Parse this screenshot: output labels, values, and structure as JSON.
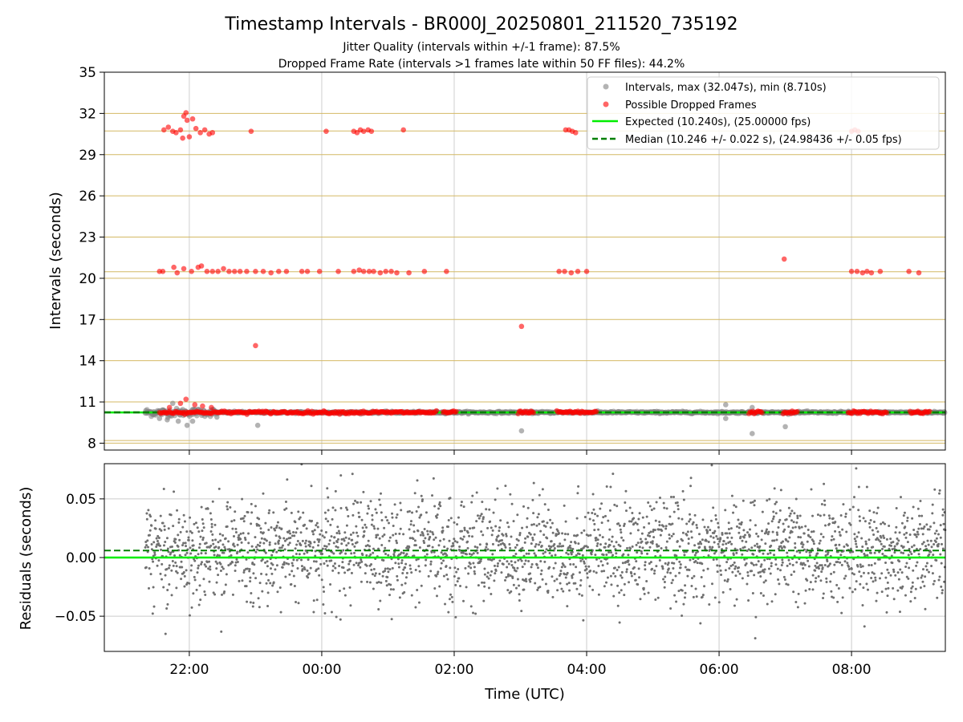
{
  "chart_data": [
    {
      "type": "scatter",
      "title": "Timestamp Intervals - BR000J_20250801_211520_735192",
      "subtitle_1": "Jitter Quality (intervals within +/-1 frame): 87.5%",
      "subtitle_2": "Dropped Frame Rate (intervals >1 frames late within 50 FF files): 44.2%",
      "ylabel": "Intervals (seconds)",
      "xlabel": "",
      "ylim": [
        7.5,
        35
      ],
      "xlim": [
        "2025-08-01 20:43",
        "2025-08-02 09:25"
      ],
      "yticks": [
        "8",
        "11",
        "14",
        "17",
        "20",
        "23",
        "26",
        "29",
        "32",
        "35"
      ],
      "frame_lines": [
        8.19,
        10.24,
        20.48,
        30.72
      ],
      "expected": 10.24,
      "median": 10.246,
      "grid": true,
      "legend_position": "top-right",
      "legend": {
        "intervals": "Intervals, max (32.047s), min (8.710s)",
        "dropped": "Possible Dropped Frames",
        "expected": "Expected (10.240s), (25.00000 fps)",
        "median": "Median (10.246 +/- 0.022 s), (24.98436 +/- 0.05 fps)"
      },
      "colors": {
        "intervals": "#808080",
        "dropped": "#ff0000",
        "expected": "#00ee00",
        "median": "#008000",
        "gridline": "#d4b964"
      },
      "series": [
        {
          "name": "Possible Dropped Frames",
          "points": [
            [
              "2025-08-01 21:37",
              30.8
            ],
            [
              "2025-08-01 21:41",
              31.0
            ],
            [
              "2025-08-01 21:45",
              30.7
            ],
            [
              "2025-08-01 21:48",
              30.6
            ],
            [
              "2025-08-01 21:52",
              30.8
            ],
            [
              "2025-08-01 21:55",
              31.8
            ],
            [
              "2025-08-01 21:57",
              32.05
            ],
            [
              "2025-08-01 21:58",
              31.5
            ],
            [
              "2025-08-01 22:00",
              30.3
            ],
            [
              "2025-08-01 22:03",
              31.6
            ],
            [
              "2025-08-01 22:06",
              30.9
            ],
            [
              "2025-08-01 22:10",
              30.6
            ],
            [
              "2025-08-01 22:14",
              30.8
            ],
            [
              "2025-08-01 22:18",
              30.5
            ],
            [
              "2025-08-01 22:21",
              30.6
            ],
            [
              "2025-08-01 21:54",
              30.2
            ],
            [
              "2025-08-01 22:56",
              30.7
            ],
            [
              "2025-08-02 00:04",
              30.7
            ],
            [
              "2025-08-02 00:29",
              30.7
            ],
            [
              "2025-08-02 00:32",
              30.6
            ],
            [
              "2025-08-02 00:35",
              30.8
            ],
            [
              "2025-08-02 00:38",
              30.7
            ],
            [
              "2025-08-02 00:42",
              30.8
            ],
            [
              "2025-08-02 00:45",
              30.7
            ],
            [
              "2025-08-02 01:14",
              30.8
            ],
            [
              "2025-08-02 03:41",
              30.8
            ],
            [
              "2025-08-02 03:44",
              30.8
            ],
            [
              "2025-08-02 03:47",
              30.7
            ],
            [
              "2025-08-02 03:50",
              30.6
            ],
            [
              "2025-08-02 08:00",
              30.7
            ],
            [
              "2025-08-02 08:03",
              30.8
            ],
            [
              "2025-08-02 08:06",
              30.7
            ],
            [
              "2025-08-01 21:33",
              20.5
            ],
            [
              "2025-08-01 21:36",
              20.5
            ],
            [
              "2025-08-01 21:46",
              20.8
            ],
            [
              "2025-08-01 21:49",
              20.4
            ],
            [
              "2025-08-01 21:55",
              20.7
            ],
            [
              "2025-08-01 22:02",
              20.5
            ],
            [
              "2025-08-01 22:08",
              20.8
            ],
            [
              "2025-08-01 22:11",
              20.9
            ],
            [
              "2025-08-01 22:16",
              20.5
            ],
            [
              "2025-08-01 22:21",
              20.5
            ],
            [
              "2025-08-01 22:26",
              20.5
            ],
            [
              "2025-08-01 22:31",
              20.7
            ],
            [
              "2025-08-01 22:36",
              20.5
            ],
            [
              "2025-08-01 22:41",
              20.5
            ],
            [
              "2025-08-01 22:46",
              20.5
            ],
            [
              "2025-08-01 22:52",
              20.5
            ],
            [
              "2025-08-01 23:00",
              20.5
            ],
            [
              "2025-08-01 23:07",
              20.5
            ],
            [
              "2025-08-01 23:14",
              20.4
            ],
            [
              "2025-08-01 23:21",
              20.5
            ],
            [
              "2025-08-01 23:28",
              20.5
            ],
            [
              "2025-08-01 23:42",
              20.5
            ],
            [
              "2025-08-01 23:47",
              20.5
            ],
            [
              "2025-08-01 23:58",
              20.5
            ],
            [
              "2025-08-02 00:15",
              20.5
            ],
            [
              "2025-08-02 00:29",
              20.5
            ],
            [
              "2025-08-02 00:34",
              20.6
            ],
            [
              "2025-08-02 00:38",
              20.5
            ],
            [
              "2025-08-02 00:43",
              20.5
            ],
            [
              "2025-08-02 00:47",
              20.5
            ],
            [
              "2025-08-02 00:53",
              20.4
            ],
            [
              "2025-08-02 00:58",
              20.5
            ],
            [
              "2025-08-02 01:03",
              20.5
            ],
            [
              "2025-08-02 01:08",
              20.4
            ],
            [
              "2025-08-02 01:19",
              20.4
            ],
            [
              "2025-08-02 01:33",
              20.5
            ],
            [
              "2025-08-02 01:53",
              20.5
            ],
            [
              "2025-08-02 03:35",
              20.5
            ],
            [
              "2025-08-02 03:40",
              20.5
            ],
            [
              "2025-08-02 03:46",
              20.4
            ],
            [
              "2025-08-02 03:52",
              20.5
            ],
            [
              "2025-08-02 04:00",
              20.5
            ],
            [
              "2025-08-02 06:59",
              21.4
            ],
            [
              "2025-08-02 08:00",
              20.5
            ],
            [
              "2025-08-02 08:05",
              20.5
            ],
            [
              "2025-08-02 08:10",
              20.4
            ],
            [
              "2025-08-02 08:14",
              20.5
            ],
            [
              "2025-08-02 08:18",
              20.4
            ],
            [
              "2025-08-02 08:26",
              20.5
            ],
            [
              "2025-08-02 08:52",
              20.5
            ],
            [
              "2025-08-02 09:01",
              20.4
            ],
            [
              "2025-08-01 23:00",
              15.1
            ],
            [
              "2025-08-02 03:01",
              16.5
            ],
            [
              "2025-08-01 21:57",
              11.2
            ],
            [
              "2025-08-01 21:52",
              10.9
            ],
            [
              "2025-08-01 22:05",
              10.8
            ],
            [
              "2025-08-01 22:12",
              10.7
            ],
            [
              "2025-08-01 21:42",
              10.6
            ],
            [
              "2025-08-01 22:20",
              10.6
            ]
          ],
          "bands_at_expected": [
            [
              "2025-08-01 21:33",
              "2025-08-02 01:45"
            ],
            [
              "2025-08-02 01:50",
              "2025-08-02 02:03"
            ],
            [
              "2025-08-02 02:58",
              "2025-08-02 03:13"
            ],
            [
              "2025-08-02 03:33",
              "2025-08-02 04:10"
            ],
            [
              "2025-08-02 06:27",
              "2025-08-02 06:40"
            ],
            [
              "2025-08-02 06:58",
              "2025-08-02 07:12"
            ],
            [
              "2025-08-02 07:57",
              "2025-08-02 08:33"
            ],
            [
              "2025-08-02 08:53",
              "2025-08-02 09:12"
            ]
          ]
        },
        {
          "name": "Intervals, max (32.047s), min (8.710s)",
          "range": [
            "2025-08-01 21:20",
            "2025-08-02 09:25"
          ],
          "typical": 10.24,
          "outliers": [
            [
              "2025-08-01 21:33",
              9.8
            ],
            [
              "2025-08-01 21:40",
              9.7
            ],
            [
              "2025-08-01 21:50",
              9.6
            ],
            [
              "2025-08-01 21:58",
              9.3
            ],
            [
              "2025-08-01 22:03",
              9.6
            ],
            [
              "2025-08-01 23:02",
              9.3
            ],
            [
              "2025-08-02 03:01",
              8.9
            ],
            [
              "2025-08-02 06:06",
              10.8
            ],
            [
              "2025-08-02 06:06",
              9.8
            ],
            [
              "2025-08-02 06:30",
              8.7
            ],
            [
              "2025-08-02 06:30",
              10.6
            ],
            [
              "2025-08-02 07:00",
              9.2
            ],
            [
              "2025-08-01 21:45",
              10.9
            ],
            [
              "2025-08-01 22:25",
              9.9
            ]
          ]
        }
      ]
    },
    {
      "type": "scatter",
      "title": "",
      "xlabel": "Time (UTC)",
      "ylabel": "Residuals (seconds)",
      "ylim": [
        -0.08,
        0.08
      ],
      "yticks": [
        "0.05",
        "0.00",
        "−0.05"
      ],
      "xticks": [
        "22:00",
        "00:00",
        "02:00",
        "04:00",
        "06:00",
        "08:00"
      ],
      "expected": 0.0,
      "median": 0.006,
      "grid": true,
      "x_range": [
        "2025-08-01 21:20",
        "2025-08-02 09:25"
      ],
      "residual_spread_sd": 0.022,
      "colors": {
        "points": "#707070",
        "expected": "#00ee00",
        "median": "#008000",
        "grid": "#cccccc"
      }
    }
  ]
}
